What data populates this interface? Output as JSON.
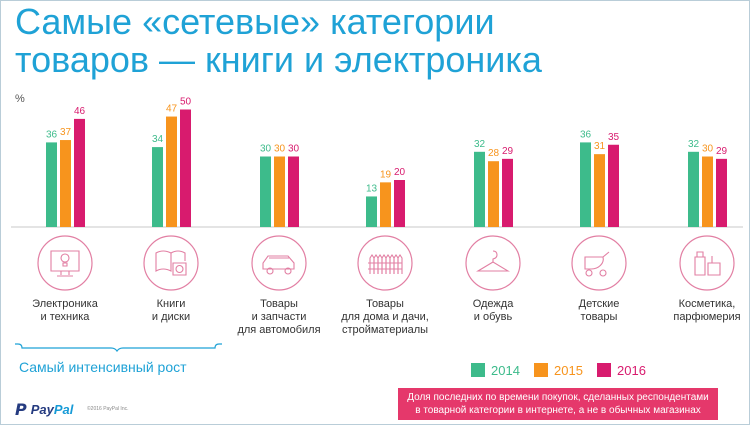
{
  "title": {
    "line1": "Самые «сетевые» категории",
    "line2": "товаров — книги и электроника"
  },
  "chart_data": {
    "type": "bar",
    "ylabel": "%",
    "ylim": [
      0,
      60
    ],
    "series": [
      {
        "name": "2014",
        "color": "#3dbb8b",
        "values": [
          36,
          34,
          30,
          13,
          32,
          36,
          32
        ]
      },
      {
        "name": "2015",
        "color": "#f7941d",
        "values": [
          37,
          47,
          30,
          19,
          28,
          31,
          30
        ]
      },
      {
        "name": "2016",
        "color": "#d81b6e",
        "values": [
          46,
          50,
          30,
          20,
          29,
          35,
          29
        ]
      }
    ],
    "categories": [
      {
        "label_lines": [
          "Электроника",
          "и техника"
        ],
        "icon": "lightbulb-monitor-icon"
      },
      {
        "label_lines": [
          "Книги",
          "и диски"
        ],
        "icon": "book-disc-icon"
      },
      {
        "label_lines": [
          "Товары",
          "и запчасти",
          "для автомобиля"
        ],
        "icon": "car-icon"
      },
      {
        "label_lines": [
          "Товары",
          "для дома и дачи,",
          "стройматериалы"
        ],
        "icon": "fence-icon"
      },
      {
        "label_lines": [
          "Одежда",
          "и обувь"
        ],
        "icon": "hanger-icon"
      },
      {
        "label_lines": [
          "Детские",
          "товары"
        ],
        "icon": "stroller-icon"
      },
      {
        "label_lines": [
          "Косметика,",
          "парфюмерия"
        ],
        "icon": "cosmetics-icon"
      }
    ],
    "legend_position": "bottom-right",
    "grid": false
  },
  "growth_label": "Самый интенсивный рост",
  "logo": {
    "part1": "Pay",
    "part2": "Pal"
  },
  "copyright": "©2016 PayPal Inc.",
  "footnote": {
    "line1": "Доля последних по времени покупок, сделанных респондентами",
    "line2": "в товарной категории в интернете, а не в обычных магазинах"
  }
}
